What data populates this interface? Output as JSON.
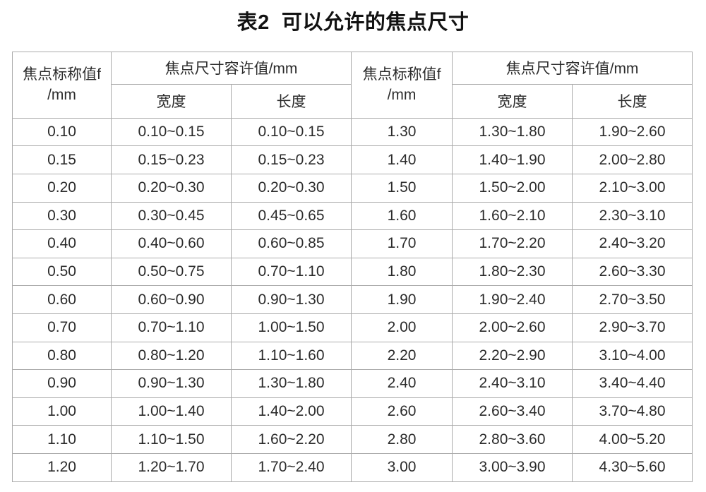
{
  "title": "表2  可以允许的焦点尺寸",
  "table": {
    "header": {
      "nominal_line1": "焦点标称值f",
      "nominal_line2": "/mm",
      "tolerance_group": "焦点尺寸容许值/mm",
      "width_label": "宽度",
      "length_label": "长度"
    },
    "rows": [
      [
        "0.10",
        "0.10~0.15",
        "0.10~0.15",
        "1.30",
        "1.30~1.80",
        "1.90~2.60"
      ],
      [
        "0.15",
        "0.15~0.23",
        "0.15~0.23",
        "1.40",
        "1.40~1.90",
        "2.00~2.80"
      ],
      [
        "0.20",
        "0.20~0.30",
        "0.20~0.30",
        "1.50",
        "1.50~2.00",
        "2.10~3.00"
      ],
      [
        "0.30",
        "0.30~0.45",
        "0.45~0.65",
        "1.60",
        "1.60~2.10",
        "2.30~3.10"
      ],
      [
        "0.40",
        "0.40~0.60",
        "0.60~0.85",
        "1.70",
        "1.70~2.20",
        "2.40~3.20"
      ],
      [
        "0.50",
        "0.50~0.75",
        "0.70~1.10",
        "1.80",
        "1.80~2.30",
        "2.60~3.30"
      ],
      [
        "0.60",
        "0.60~0.90",
        "0.90~1.30",
        "1.90",
        "1.90~2.40",
        "2.70~3.50"
      ],
      [
        "0.70",
        "0.70~1.10",
        "1.00~1.50",
        "2.00",
        "2.00~2.60",
        "2.90~3.70"
      ],
      [
        "0.80",
        "0.80~1.20",
        "1.10~1.60",
        "2.20",
        "2.20~2.90",
        "3.10~4.00"
      ],
      [
        "0.90",
        "0.90~1.30",
        "1.30~1.80",
        "2.40",
        "2.40~3.10",
        "3.40~4.40"
      ],
      [
        "1.00",
        "1.00~1.40",
        "1.40~2.00",
        "2.60",
        "2.60~3.40",
        "3.70~4.80"
      ],
      [
        "1.10",
        "1.10~1.50",
        "1.60~2.20",
        "2.80",
        "2.80~3.60",
        "4.00~5.20"
      ],
      [
        "1.20",
        "1.20~1.70",
        "1.70~2.40",
        "3.00",
        "3.00~3.90",
        "4.30~5.60"
      ]
    ]
  },
  "colors": {
    "border": "#ababab",
    "text": "#2b2b2b",
    "title_text": "#121212",
    "background": "#ffffff"
  }
}
